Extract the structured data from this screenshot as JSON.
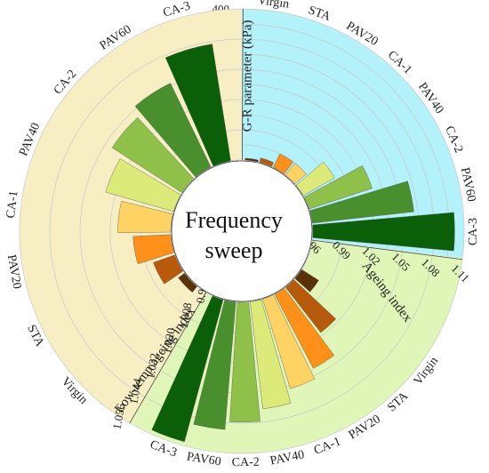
{
  "chart_data": {
    "type": "radial-bar",
    "center_label": [
      "Frequency",
      "sweep"
    ],
    "categories": [
      "Virgin",
      "STA",
      "PAV20",
      "CA-1",
      "PAV40",
      "CA-2",
      "PAV60",
      "CA-3"
    ],
    "colors": [
      "#5a3208",
      "#b85a0c",
      "#ff9019",
      "#ffd264",
      "#dcea7a",
      "#8fc04a",
      "#4a8f2e",
      "#0b5f08"
    ],
    "sectors": [
      {
        "name": "G-R",
        "title": "G-R parameter (kPa)",
        "background": "#b3f1fb",
        "range": [
          0,
          400
        ],
        "ticks": [
          "0",
          "40",
          "80",
          "120",
          "160",
          "200",
          "240",
          "280",
          "320",
          "360",
          "400"
        ],
        "values": [
          5,
          12,
          40,
          40,
          95,
          175,
          270,
          375
        ]
      },
      {
        "name": "Ageing index",
        "title": "Ageing index",
        "background": "#dff6b8",
        "range": [
          0.96,
          1.11
        ],
        "ticks": [
          "0.96",
          "0.99",
          "1.02",
          "1.05",
          "1.08",
          "1.11"
        ],
        "values": [
          0.98,
          1.017,
          1.043,
          1.053,
          1.067,
          1.079,
          1.087,
          1.106
        ]
      },
      {
        "name": "Low-temp ageing index",
        "title": "Low-temp ageing index",
        "background": "#f7efc3",
        "range": [
          0.996,
          1.056
        ],
        "ticks": [
          "0.996",
          "1.008",
          "1.020",
          "1.032",
          "1.044",
          "1.056"
        ],
        "values": [
          0.999,
          1.005,
          1.011,
          1.017,
          1.024,
          1.029,
          1.033,
          1.043
        ]
      }
    ]
  }
}
